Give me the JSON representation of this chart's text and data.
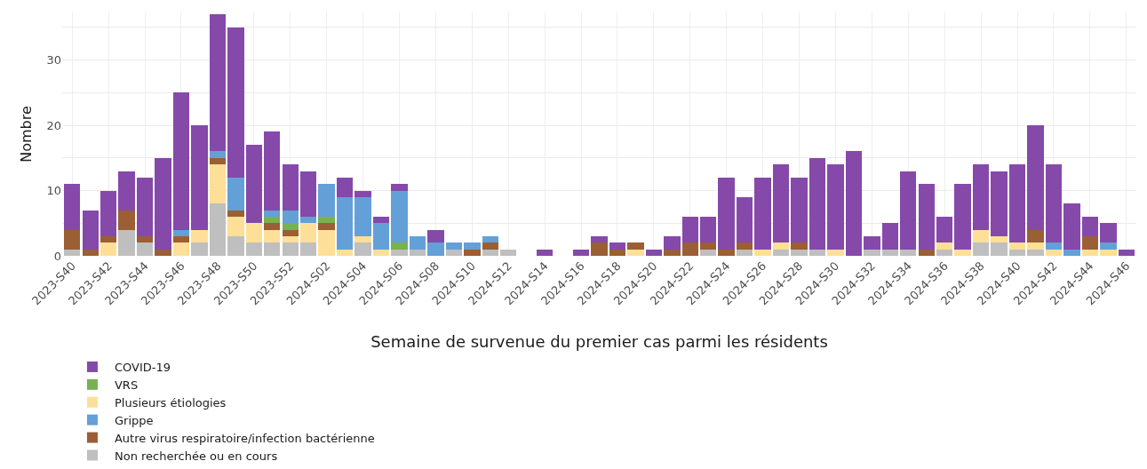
{
  "chart_data": {
    "type": "bar",
    "stacked": true,
    "xlabel": "Semaine de survenue du premier cas parmi les résidents",
    "ylabel": "Nombre",
    "categories": [
      "2023-S40",
      null,
      "2023-S42",
      null,
      "2023-S44",
      null,
      "2023-S46",
      null,
      "2023-S48",
      null,
      "2023-S50",
      null,
      "2023-S52",
      null,
      "2024-S02",
      null,
      "2024-S04",
      null,
      "2024-S06",
      null,
      "2024-S08",
      null,
      "2024-S10",
      null,
      "2024-S12",
      null,
      "2024-S14",
      null,
      "2024-S16",
      null,
      "2024-S18",
      null,
      "2024-S20",
      null,
      "2024-S22",
      null,
      "2024-S24",
      null,
      "2024-S26",
      null,
      "2024-S28",
      null,
      "2024-S30",
      null,
      "2024-S32",
      null,
      "2024-S34",
      null,
      "2024-S36",
      null,
      "2024-S38",
      null,
      "2024-S40",
      null,
      "2024-S42",
      null,
      "2024-S44",
      null,
      "2024-S46"
    ],
    "series": [
      {
        "name": "Non recherchée ou en cours",
        "color": "#bfbfbf",
        "values": [
          1,
          0,
          0,
          4,
          2,
          0,
          0,
          2,
          8,
          3,
          2,
          2,
          2,
          2,
          0,
          0,
          2,
          0,
          1,
          1,
          0,
          1,
          0,
          1,
          1,
          0,
          0,
          0,
          0,
          0,
          0,
          0,
          0,
          0,
          0,
          1,
          0,
          1,
          0,
          1,
          1,
          1,
          0,
          0,
          1,
          1,
          1,
          0,
          1,
          0,
          2,
          2,
          1,
          1,
          0,
          0,
          0,
          0,
          0
        ]
      },
      {
        "name": "Plusieurs étiologies",
        "color": "#fddf97",
        "values": [
          0,
          0,
          2,
          0,
          0,
          0,
          2,
          2,
          6,
          3,
          3,
          2,
          1,
          3,
          4,
          1,
          1,
          1,
          0,
          0,
          0,
          0,
          0,
          0,
          0,
          0,
          0,
          0,
          0,
          0,
          0,
          1,
          0,
          0,
          0,
          0,
          0,
          0,
          1,
          1,
          0,
          0,
          1,
          0,
          0,
          0,
          0,
          0,
          1,
          1,
          2,
          1,
          1,
          1,
          1,
          0,
          1,
          1,
          0
        ]
      },
      {
        "name": "Autre virus respiratoire/infection bactérienne",
        "color": "#9a5f34",
        "values": [
          3,
          1,
          1,
          3,
          1,
          1,
          1,
          0,
          1,
          1,
          0,
          1,
          1,
          0,
          1,
          0,
          0,
          0,
          0,
          0,
          0,
          0,
          1,
          1,
          0,
          0,
          0,
          0,
          0,
          2,
          1,
          1,
          0,
          1,
          2,
          1,
          1,
          1,
          0,
          0,
          1,
          0,
          0,
          0,
          0,
          0,
          0,
          1,
          0,
          0,
          0,
          0,
          0,
          2,
          0,
          0,
          2,
          0,
          0
        ]
      },
      {
        "name": "VRS",
        "color": "#78b150",
        "values": [
          0,
          0,
          0,
          0,
          0,
          0,
          0,
          0,
          0,
          0,
          0,
          1,
          1,
          0,
          1,
          0,
          0,
          0,
          1,
          0,
          0,
          0,
          0,
          0,
          0,
          0,
          0,
          0,
          0,
          0,
          0,
          0,
          0,
          0,
          0,
          0,
          0,
          0,
          0,
          0,
          0,
          0,
          0,
          0,
          0,
          0,
          0,
          0,
          0,
          0,
          0,
          0,
          0,
          0,
          0,
          0,
          0,
          0,
          0
        ]
      },
      {
        "name": "Grippe",
        "color": "#64a0d8",
        "values": [
          0,
          0,
          0,
          0,
          0,
          0,
          1,
          0,
          1,
          5,
          0,
          1,
          2,
          1,
          5,
          8,
          6,
          4,
          8,
          2,
          2,
          1,
          1,
          1,
          0,
          0,
          0,
          0,
          0,
          0,
          0,
          0,
          0,
          0,
          0,
          0,
          0,
          0,
          0,
          0,
          0,
          0,
          0,
          0,
          0,
          0,
          0,
          0,
          0,
          0,
          0,
          0,
          0,
          0,
          1,
          1,
          0,
          1,
          0
        ]
      },
      {
        "name": "COVID-19",
        "color": "#8549aa",
        "values": [
          7,
          6,
          7,
          6,
          9,
          14,
          21,
          16,
          21,
          23,
          12,
          12,
          7,
          7,
          0,
          3,
          1,
          1,
          1,
          0,
          2,
          0,
          0,
          0,
          0,
          0,
          1,
          0,
          1,
          1,
          1,
          0,
          1,
          2,
          4,
          4,
          11,
          7,
          11,
          12,
          10,
          14,
          13,
          16,
          2,
          4,
          12,
          10,
          4,
          10,
          10,
          10,
          12,
          16,
          12,
          7,
          3,
          3,
          1
        ]
      }
    ],
    "ylim": [
      0,
      37.3
    ],
    "yticks": [
      0,
      {
        "value": 5,
        "label": null
      },
      10,
      {
        "value": 15,
        "label": null
      },
      20,
      {
        "value": 25,
        "label": null
      },
      30,
      {
        "value": 35,
        "label": null
      }
    ],
    "grid": true,
    "legend": "bottom"
  }
}
